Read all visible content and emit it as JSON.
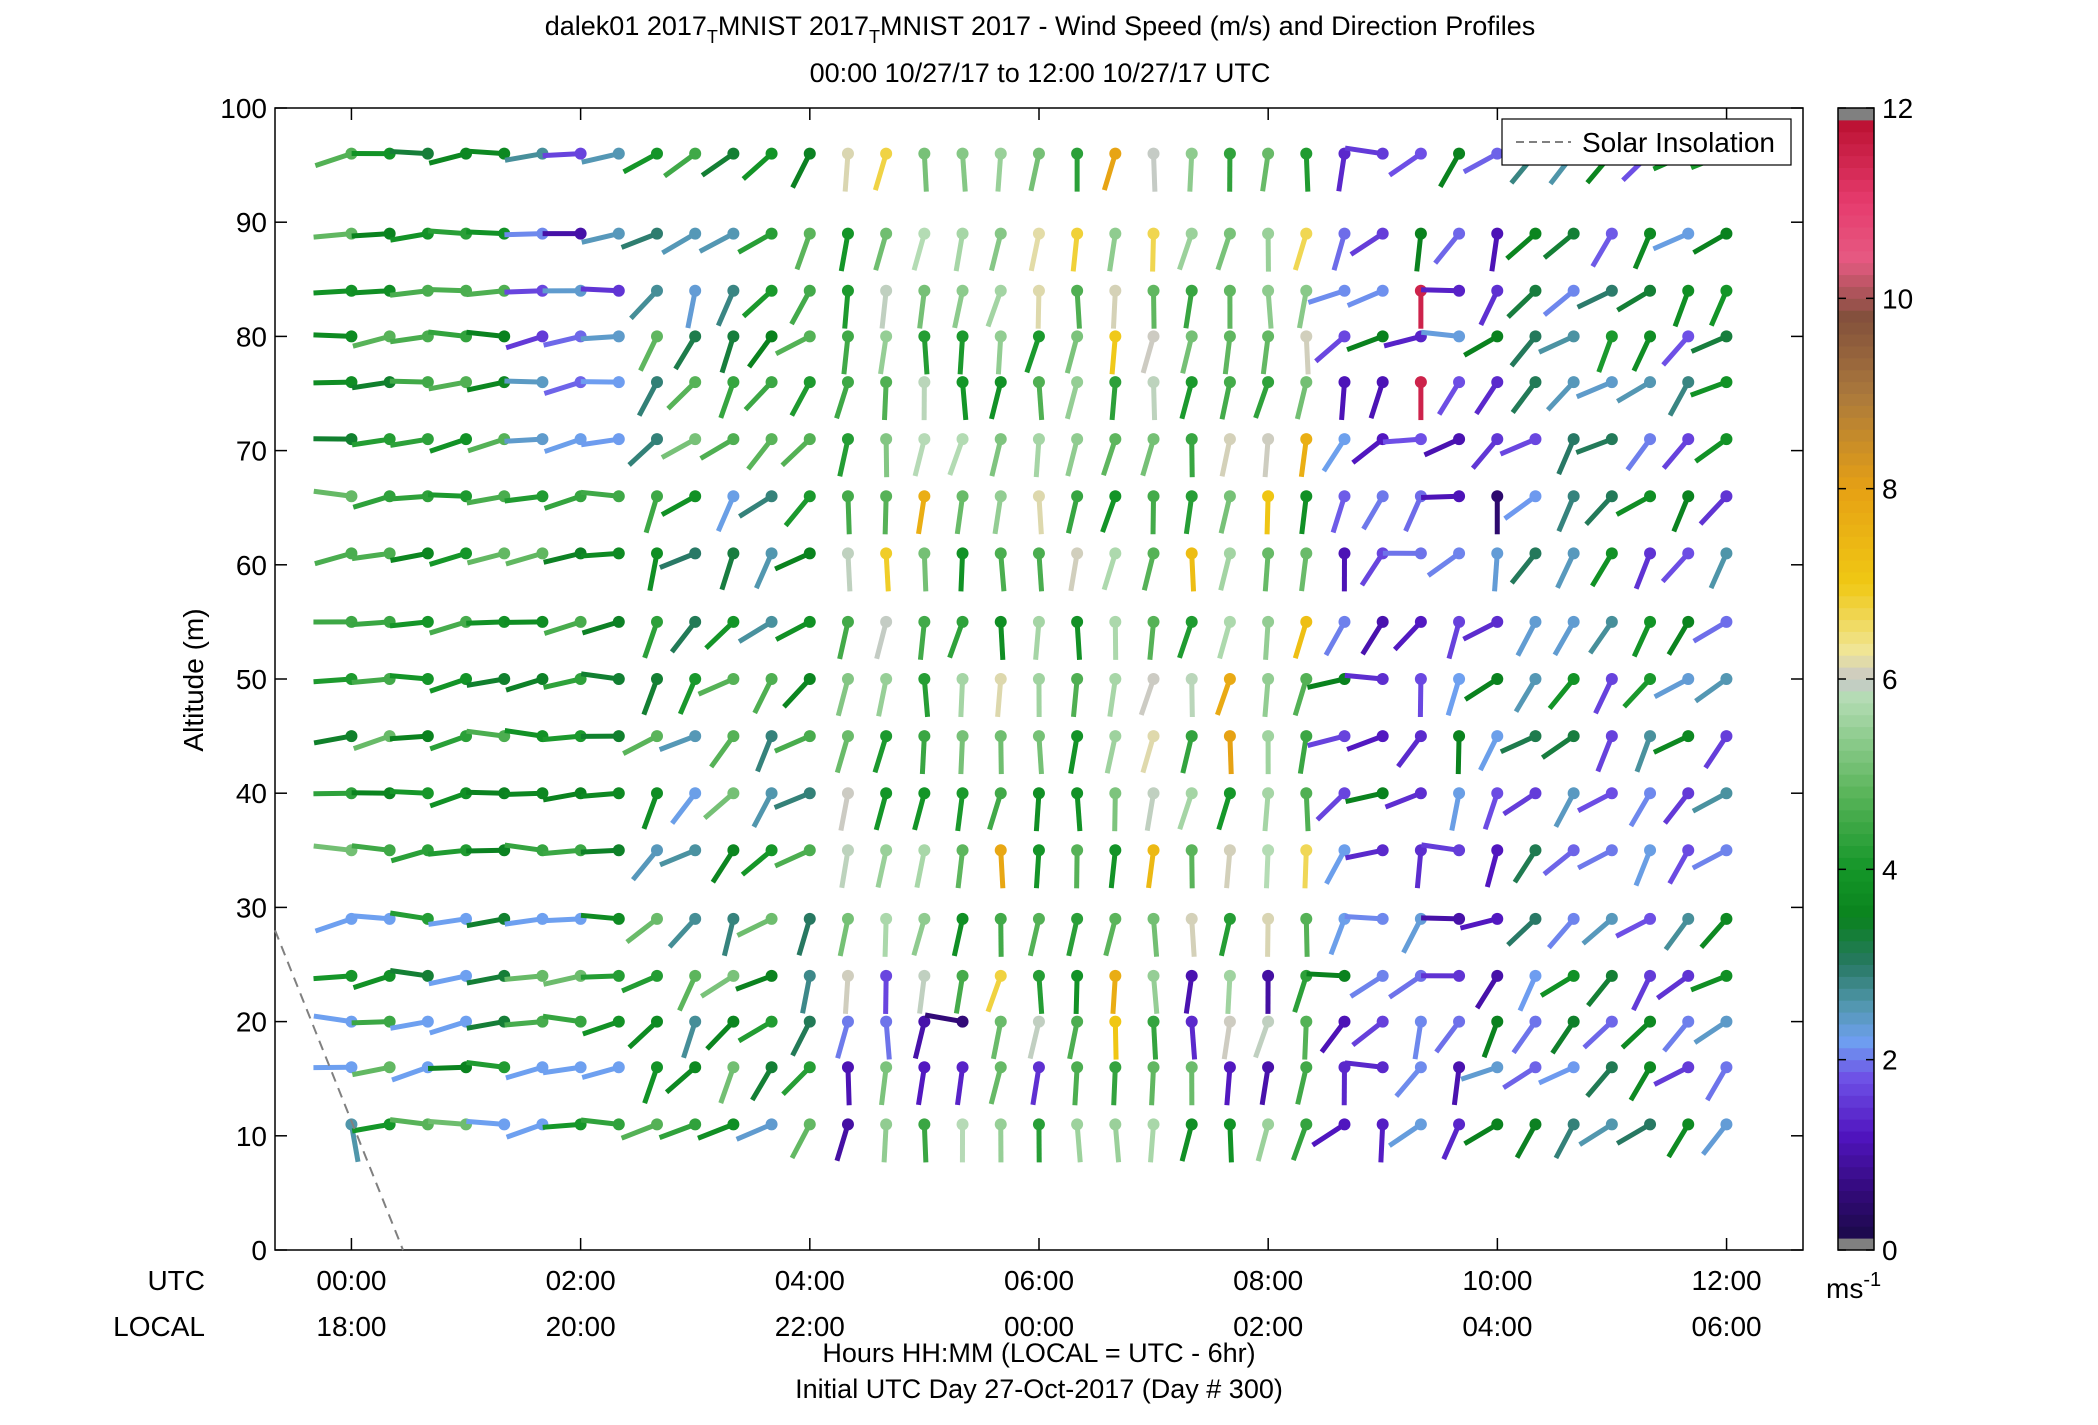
{
  "chart_data": {
    "type": "wind-barb-profile",
    "title_line1_parts": [
      "dalek01 2017",
      "MNIST 2017",
      "MNIST 2017 - Wind Speed (m/s) and Direction Profiles"
    ],
    "title_subscript": "T",
    "title_line2": "00:00 10/27/17 to 12:00 10/27/17  UTC",
    "ylabel": "Altitude (m)",
    "ylim": [
      0,
      100
    ],
    "yticks": [
      0,
      10,
      20,
      30,
      40,
      50,
      60,
      70,
      80,
      90,
      100
    ],
    "xlim_hours": [
      -0.667,
      12.667
    ],
    "xticks_hours": [
      0,
      2,
      4,
      6,
      8,
      10,
      12
    ],
    "xticks_utc": [
      "00:00",
      "02:00",
      "04:00",
      "06:00",
      "08:00",
      "10:00",
      "12:00"
    ],
    "xticks_local": [
      "18:00",
      "20:00",
      "22:00",
      "00:00",
      "02:00",
      "04:00",
      "06:00"
    ],
    "row_label_utc": "UTC",
    "row_label_local": "LOCAL",
    "xlabel_line1": "Hours HH:MM  (LOCAL = UTC - 6hr)",
    "xlabel_line2": "Initial UTC Day 27-Oct-2017 (Day # 300)",
    "legend": {
      "label": "Solar Insolation",
      "placement": "top-right",
      "style": "dashed",
      "color": "#808080"
    },
    "solar_insolation_line": {
      "x": [
        -0.667,
        0.45
      ],
      "y": [
        28,
        0
      ]
    },
    "colorbar": {
      "range": [
        0,
        12
      ],
      "ticks": [
        0,
        2,
        4,
        6,
        8,
        10,
        12
      ],
      "tick_labels": [
        "0",
        "2",
        "4",
        "6",
        "8",
        "10",
        "12"
      ],
      "unit_base": "ms",
      "unit_exp": "-1"
    },
    "altitudes_m": [
      11,
      16,
      20,
      24,
      29,
      35,
      40,
      45,
      50,
      55,
      61,
      66,
      71,
      76,
      80,
      84,
      89,
      96
    ],
    "time_step_hours": 0.3333,
    "time_start_hours": 0,
    "time_count": 37,
    "note_barbs": "Each barb: x in hours UTC, altitude in m, wind speed in m/s, direction in degrees (from)",
    "barbs_sample": [
      {
        "hour": 0.0,
        "alt": 11,
        "speed": 2.6,
        "dir": 170
      },
      {
        "hour": 0.333,
        "alt": 11,
        "speed": 4.0,
        "dir": 260
      },
      {
        "hour": 2.0,
        "alt": 89,
        "speed": 1.0,
        "dir": 270
      },
      {
        "hour": 5.333,
        "alt": 20,
        "speed": 0.6,
        "dir": 280
      },
      {
        "hour": 9.333,
        "alt": 76,
        "speed": 11.5,
        "dir": 180
      },
      {
        "hour": 9.333,
        "alt": 84,
        "speed": 11.5,
        "dir": 180
      },
      {
        "hour": 10.0,
        "alt": 66,
        "speed": 0.5,
        "dir": 180
      },
      {
        "hour": 12.0,
        "alt": 89,
        "speed": 3.5,
        "dir": 240
      }
    ]
  }
}
